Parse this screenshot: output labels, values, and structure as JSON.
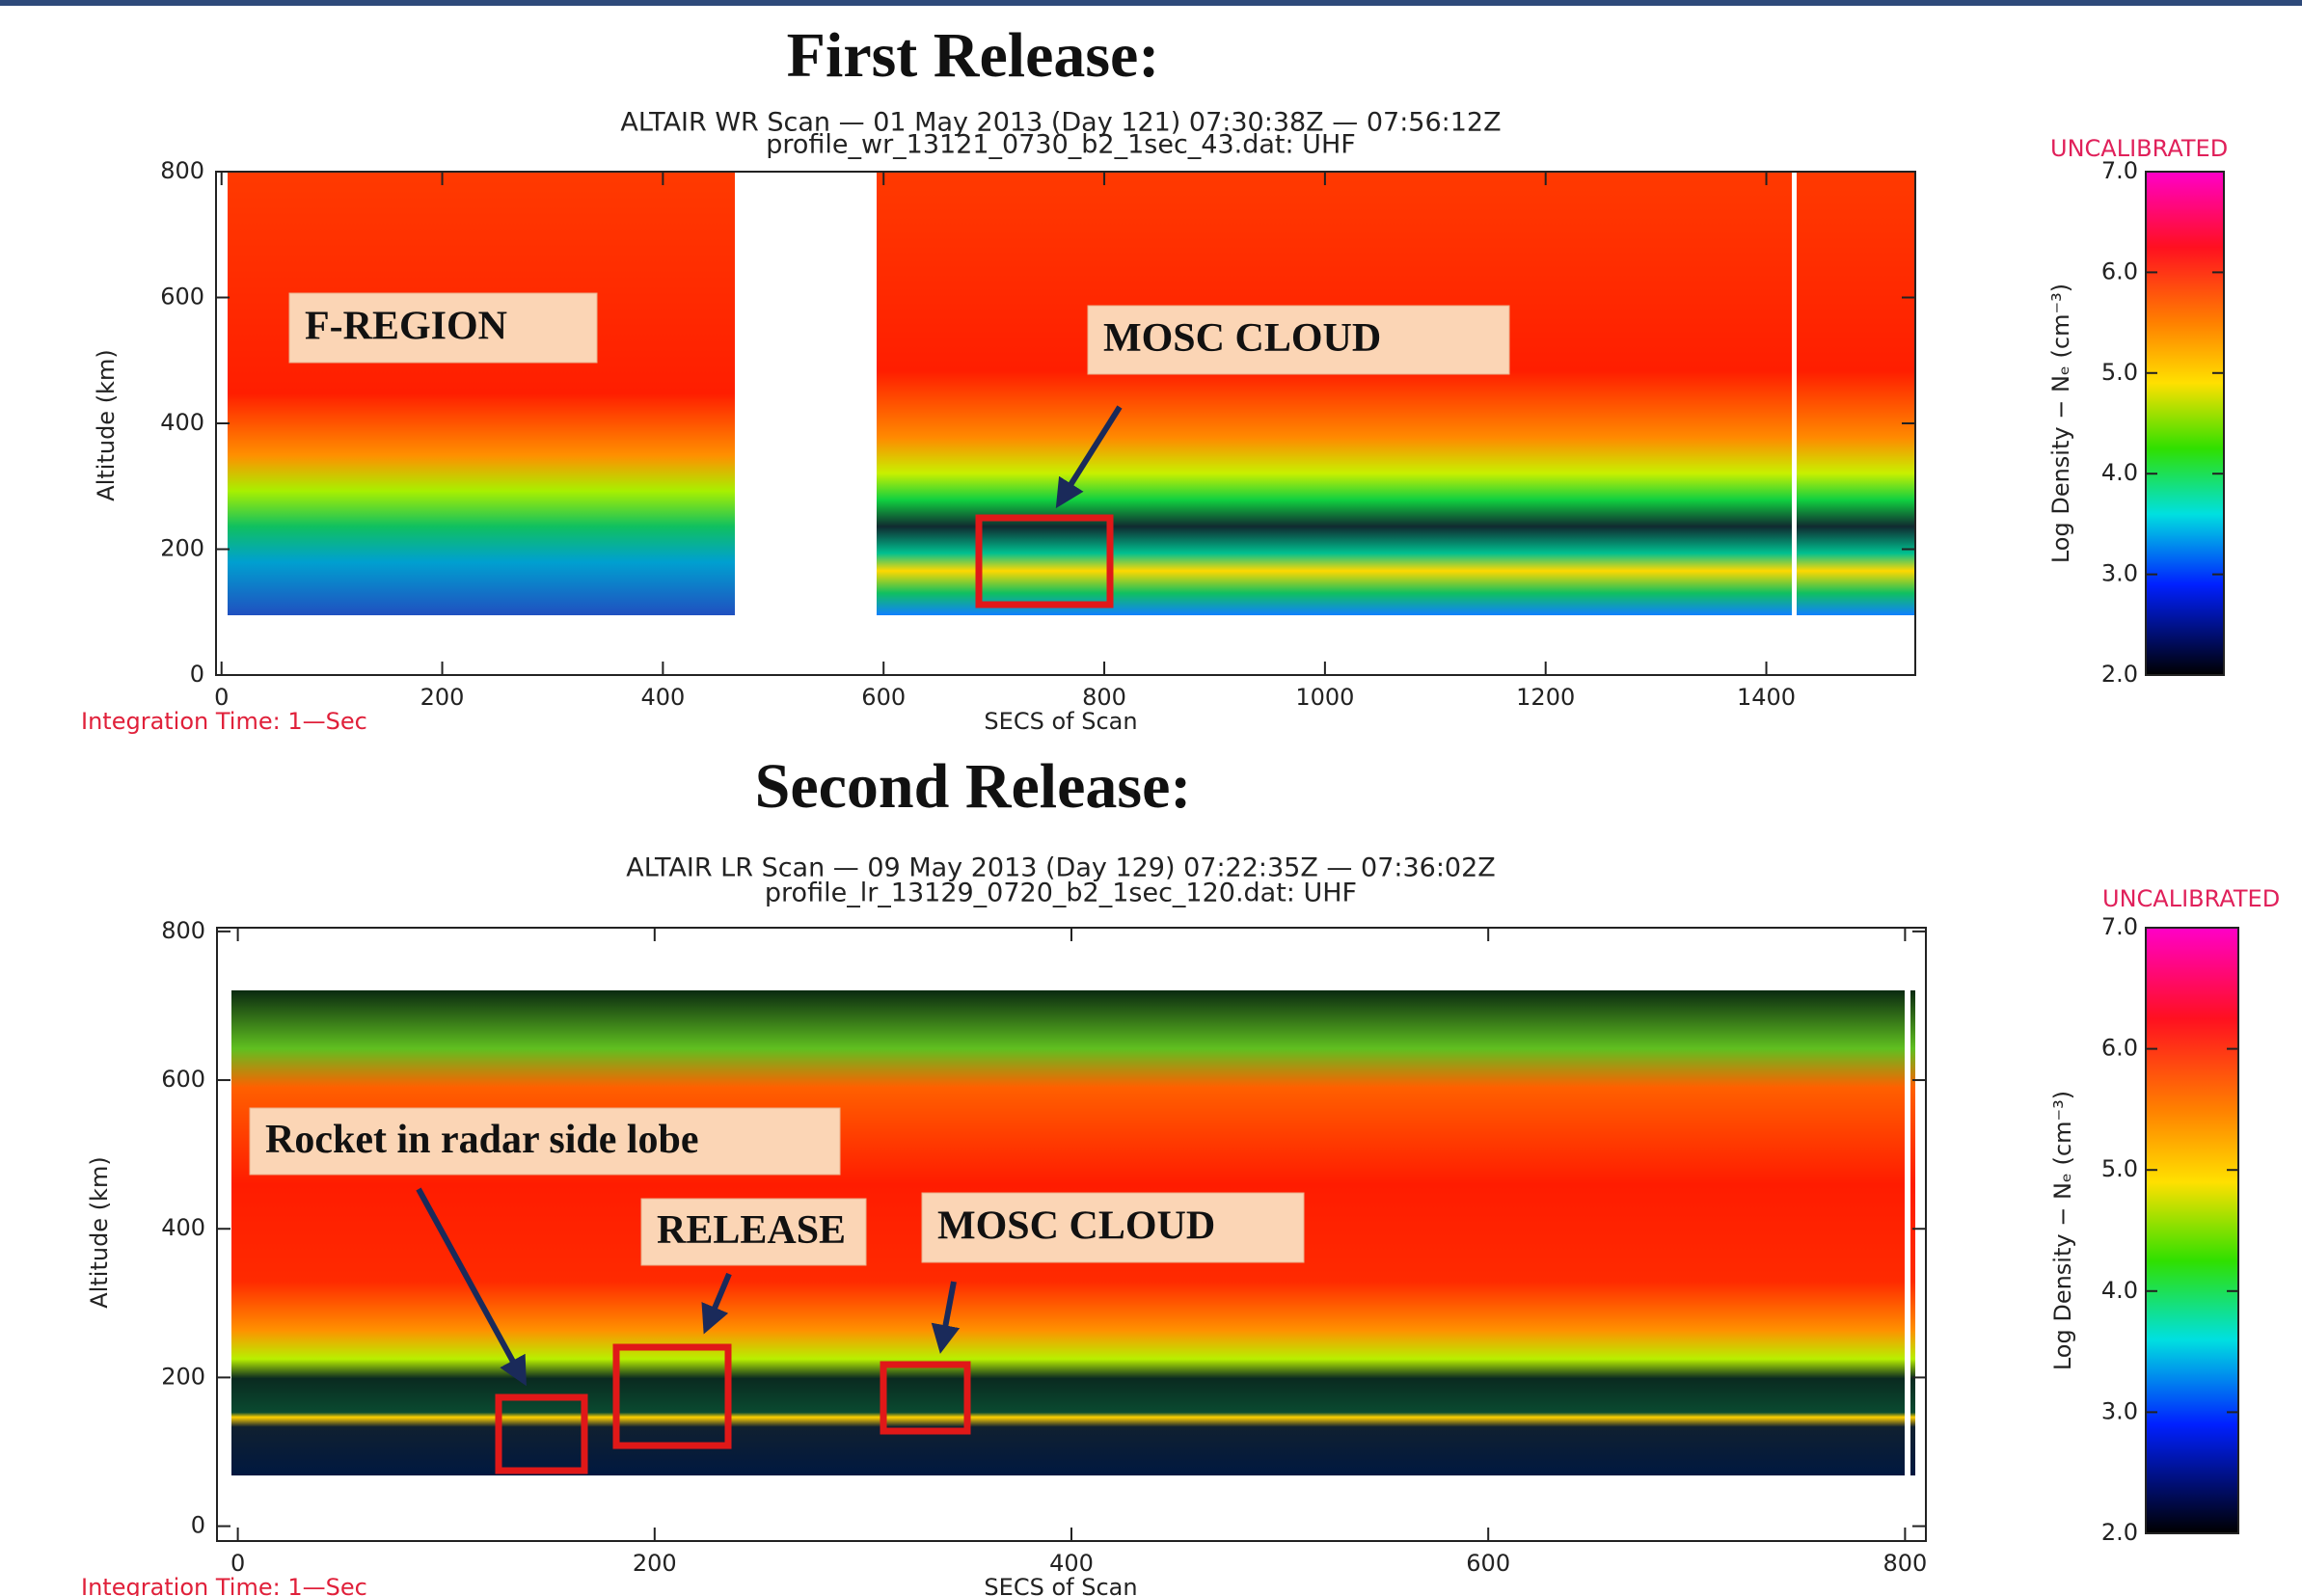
{
  "chart_data": [
    {
      "type": "heatmap",
      "heading": "First Release:",
      "title": "ALTAIR WR Scan — 01 May 2013 (Day 121) 07:30:38Z — 07:56:12Z",
      "subtitle": "profile_wr_13121_0730_b2_1sec_43.dat: UHF",
      "xlabel": "SECS of Scan",
      "ylabel": "Altitude (km)",
      "note": "Integration Time: 1—Sec",
      "xlim": [
        -5,
        1535
      ],
      "xticks": [
        0,
        200,
        400,
        600,
        800,
        1000,
        1200,
        1400
      ],
      "ylim": [
        0,
        800
      ],
      "yticks": [
        0,
        200,
        400,
        600,
        800
      ],
      "colorbar": {
        "tag": "UNCALIBRATED",
        "label": "Log Density − Nₑ (cm⁻³)",
        "lim": [
          2,
          7
        ],
        "ticks": [
          {
            "value": 2,
            "label": "2.0"
          },
          {
            "value": 3,
            "label": "3.0"
          },
          {
            "value": 4,
            "label": "4.0"
          },
          {
            "value": 5,
            "label": "5.0"
          },
          {
            "value": 6,
            "label": "6.0"
          },
          {
            "value": 7,
            "label": "7.0"
          }
        ]
      },
      "annotations": [
        "F-REGION",
        "MOSC CLOUD"
      ]
    },
    {
      "type": "heatmap",
      "heading": "Second Release:",
      "title": "ALTAIR LR Scan — 09 May 2013 (Day 129) 07:22:35Z — 07:36:02Z",
      "subtitle": "profile_lr_13129_0720_b2_1sec_120.dat: UHF",
      "xlabel": "SECS of Scan",
      "ylabel": "Altitude (km)",
      "note": "Integration Time: 1—Sec",
      "xlim": [
        -10,
        810
      ],
      "xticks": [
        0,
        200,
        400,
        600,
        800
      ],
      "ylim": [
        -20,
        805
      ],
      "yticks": [
        0,
        200,
        400,
        600,
        800
      ],
      "colorbar": {
        "tag": "UNCALIBRATED",
        "label": "Log Density − Nₑ (cm⁻³)",
        "lim": [
          2,
          7
        ],
        "ticks": [
          {
            "value": 2,
            "label": "2.0"
          },
          {
            "value": 3,
            "label": "3.0"
          },
          {
            "value": 4,
            "label": "4.0"
          },
          {
            "value": 5,
            "label": "5.0"
          },
          {
            "value": 6,
            "label": "6.0"
          },
          {
            "value": 7,
            "label": "7.0"
          }
        ]
      },
      "annotations": [
        "Rocket  in radar side lobe",
        "RELEASE",
        "MOSC CLOUD"
      ]
    }
  ]
}
